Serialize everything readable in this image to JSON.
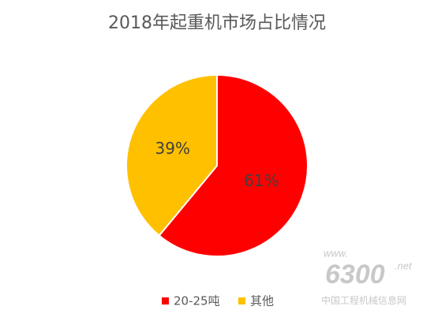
{
  "chart_data": {
    "type": "pie",
    "title": "2018年起重机市场占比情况",
    "categories": [
      "20-25吨",
      "其他"
    ],
    "values": [
      61,
      39
    ],
    "value_labels": [
      "61%",
      "39%"
    ],
    "colors": [
      "#ff0000",
      "#ffc000"
    ],
    "legend": "bottom"
  },
  "watermark": {
    "lines": [
      "www.",
      "6300",
      ".net",
      "中国工程机械信息网"
    ]
  }
}
